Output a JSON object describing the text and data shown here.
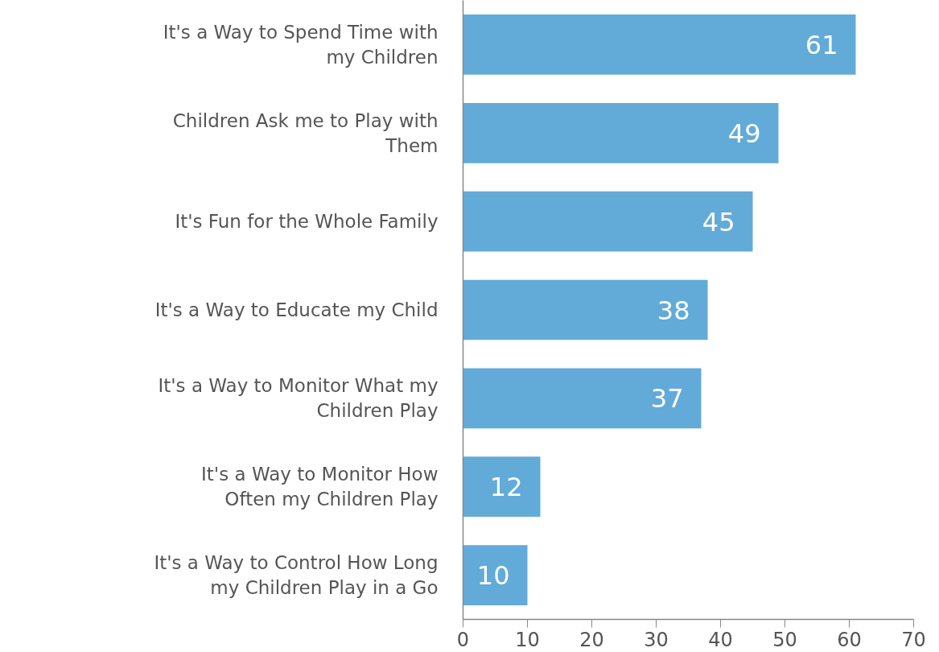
{
  "chart_data": {
    "type": "bar",
    "orientation": "horizontal",
    "categories": [
      "It's a Way to Spend Time with my Children",
      "Children Ask me to Play with Them",
      "It's Fun for the Whole Family",
      "It's a Way to Educate my Child",
      "It's a Way to Monitor What my Children Play",
      "It's a Way to Monitor How Often my Children Play",
      "It's a Way to Control How Long my Children Play in a Go"
    ],
    "values": [
      61,
      49,
      45,
      38,
      37,
      12,
      10
    ],
    "color": "#62abd8",
    "xlim": [
      0,
      70
    ],
    "xticks": [
      0,
      10,
      20,
      30,
      40,
      50,
      60,
      70
    ],
    "data_labels": true,
    "grid": false
  }
}
